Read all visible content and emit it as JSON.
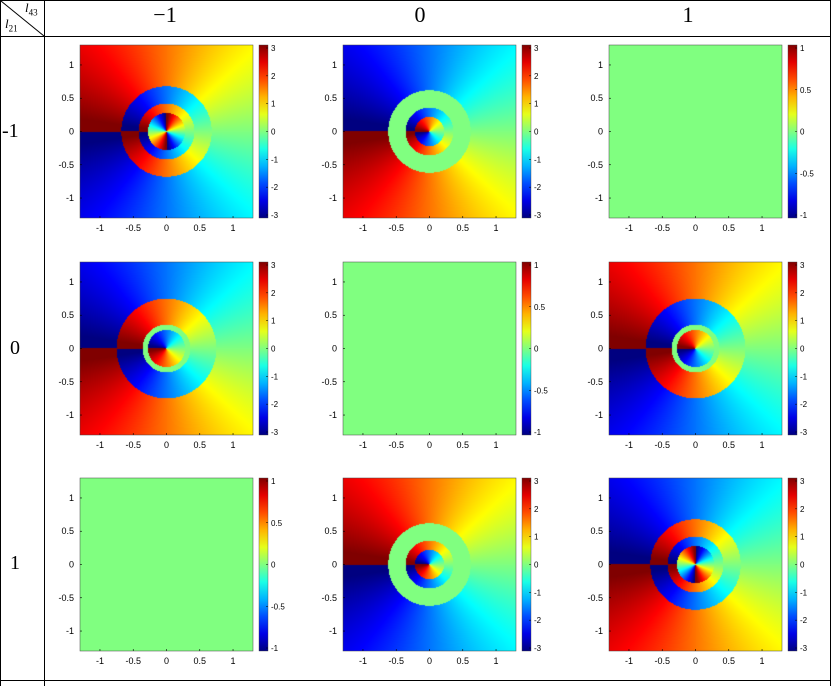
{
  "header": {
    "row_var": "l",
    "row_sub": "21",
    "col_var": "l",
    "col_sub": "43",
    "columns": [
      "−1",
      "0",
      "1"
    ],
    "rows": [
      "-1",
      "0",
      "1"
    ]
  },
  "colormap": "jet",
  "chart_data": [
    {
      "type": "heatmap",
      "row": "-1",
      "col": "-1",
      "pattern": "phase",
      "outer_l": 1,
      "ring_r": [
        0.42,
        0.68
      ],
      "ring_l": -1,
      "inner_r": 0.28,
      "inner_l": 2,
      "cbar": [
        -3,
        3
      ],
      "cbar_ticks": [
        "3",
        "2",
        "1",
        "0",
        "-1",
        "-2",
        "-3"
      ],
      "xticks": [
        "-1",
        "-0.5",
        "0",
        "0.5",
        "1"
      ],
      "yticks": [
        "1",
        "0.5",
        "0",
        "-0.5",
        "-1"
      ]
    },
    {
      "type": "heatmap",
      "row": "-1",
      "col": "0",
      "pattern": "phase",
      "outer_l": -1,
      "ring_r": [
        0.36,
        0.62
      ],
      "ring_l": 0,
      "inner_r": 0.22,
      "inner_l": 1,
      "cbar": [
        -3,
        3
      ],
      "cbar_ticks": [
        "3",
        "2",
        "1",
        "0",
        "-1",
        "-2",
        "-3"
      ],
      "xticks": [
        "-1",
        "-0.5",
        "0",
        "0.5",
        "1"
      ],
      "yticks": [
        "1",
        "0.5",
        "0",
        "-0.5",
        "-1"
      ]
    },
    {
      "type": "heatmap",
      "row": "-1",
      "col": "1",
      "pattern": "uniform",
      "cbar": [
        -1,
        1
      ],
      "cbar_ticks": [
        "1",
        "0.5",
        "0",
        "-0.5",
        "-1"
      ],
      "xticks": [
        "-1",
        "-0.5",
        "0",
        "0.5",
        "1"
      ],
      "yticks": [
        "1",
        "0.5",
        "0",
        "-0.5",
        "-1"
      ]
    },
    {
      "type": "heatmap",
      "row": "0",
      "col": "-1",
      "pattern": "phase",
      "outer_l": -1,
      "ring_r": [
        0.28,
        0.36
      ],
      "ring_l": 0,
      "inner_r": 0.28,
      "inner_l": -1,
      "disk_r": 0.75,
      "disk_l": 1,
      "cbar": [
        -3,
        3
      ],
      "cbar_ticks": [
        "3",
        "2",
        "1",
        "0",
        "-1",
        "-2",
        "-3"
      ],
      "xticks": [
        "-1",
        "-0.5",
        "0",
        "0.5",
        "1"
      ],
      "yticks": [
        "1",
        "0.5",
        "0",
        "-0.5",
        "-1"
      ]
    },
    {
      "type": "heatmap",
      "row": "0",
      "col": "0",
      "pattern": "uniform",
      "cbar": [
        -1,
        1
      ],
      "cbar_ticks": [
        "1",
        "0.5",
        "0",
        "-0.5",
        "-1"
      ],
      "xticks": [
        "-1",
        "-0.5",
        "0",
        "0.5",
        "1"
      ],
      "yticks": [
        "1",
        "0.5",
        "0",
        "-0.5",
        "-1"
      ]
    },
    {
      "type": "heatmap",
      "row": "0",
      "col": "1",
      "pattern": "phase",
      "outer_l": 1,
      "ring_r": [
        0.28,
        0.36
      ],
      "ring_l": 0,
      "inner_r": 0.28,
      "inner_l": 1,
      "disk_r": 0.75,
      "disk_l": -1,
      "cbar": [
        -3,
        3
      ],
      "cbar_ticks": [
        "3",
        "2",
        "1",
        "0",
        "-1",
        "-2",
        "-3"
      ],
      "xticks": [
        "-1",
        "-0.5",
        "0",
        "0.5",
        "1"
      ],
      "yticks": [
        "1",
        "0.5",
        "0",
        "-0.5",
        "-1"
      ]
    },
    {
      "type": "heatmap",
      "row": "1",
      "col": "-1",
      "pattern": "uniform",
      "cbar": [
        -1,
        1
      ],
      "cbar_ticks": [
        "1",
        "0.5",
        "0",
        "-0.5",
        "-1"
      ],
      "xticks": [
        "-1",
        "-0.5",
        "0",
        "0.5",
        "1"
      ],
      "yticks": [
        "1",
        "0.5",
        "0",
        "-0.5",
        "-1"
      ]
    },
    {
      "type": "heatmap",
      "row": "1",
      "col": "0",
      "pattern": "phase",
      "outer_l": 1,
      "ring_r": [
        0.36,
        0.62
      ],
      "ring_l": 0,
      "inner_r": 0.22,
      "inner_l": -1,
      "cbar": [
        -3,
        3
      ],
      "cbar_ticks": [
        "3",
        "2",
        "1",
        "0",
        "-1",
        "-2",
        "-3"
      ],
      "xticks": [
        "-1",
        "-0.5",
        "0",
        "0.5",
        "1"
      ],
      "yticks": [
        "1",
        "0.5",
        "0",
        "-0.5",
        "-1"
      ]
    },
    {
      "type": "heatmap",
      "row": "1",
      "col": "1",
      "pattern": "phase",
      "outer_l": -1,
      "ring_r": [
        0.42,
        0.68
      ],
      "ring_l": 1,
      "inner_r": 0.28,
      "inner_l": -2,
      "cbar": [
        -3,
        3
      ],
      "cbar_ticks": [
        "3",
        "2",
        "1",
        "0",
        "-1",
        "-2",
        "-3"
      ],
      "xticks": [
        "-1",
        "-0.5",
        "0",
        "0.5",
        "1"
      ],
      "yticks": [
        "1",
        "0.5",
        "0",
        "-0.5",
        "-1"
      ]
    }
  ]
}
